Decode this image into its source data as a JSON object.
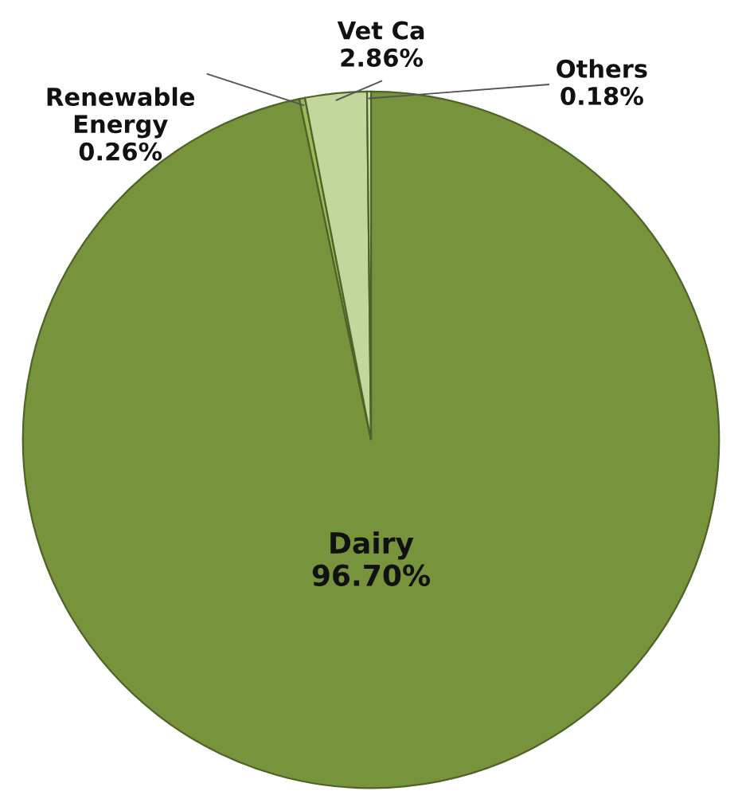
{
  "chart_data": {
    "type": "pie",
    "categories": [
      "Dairy",
      "Renewable Energy",
      "Vet Ca",
      "Others"
    ],
    "values": [
      96.7,
      0.26,
      2.86,
      0.18
    ],
    "colors": [
      "#77933c",
      "#9bbb59",
      "#c3d69b",
      "#d7e4bd"
    ],
    "value_labels": [
      "96.70%",
      "0.26%",
      "2.86%",
      "0.18%"
    ],
    "legend": false
  }
}
